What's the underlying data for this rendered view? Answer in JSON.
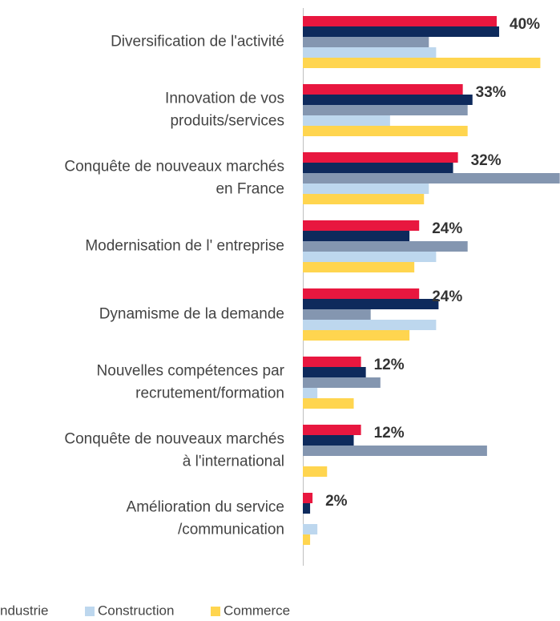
{
  "chart_data": {
    "type": "bar",
    "orientation": "horizontal",
    "categories": [
      [
        "Diversification de l'activité"
      ],
      [
        "Innovation de vos",
        "produits/services"
      ],
      [
        "Conquête de nouveaux marchés",
        "en France"
      ],
      [
        "Modernisation de l' entreprise"
      ],
      [
        "Dynamisme de la demande"
      ],
      [
        "Nouvelles compétences par",
        "recrutement/formation"
      ],
      [
        "Conquête de nouveaux marchés",
        "à l'international"
      ],
      [
        "Amélioration du service",
        "/communication"
      ]
    ],
    "series": [
      {
        "color": "#e8173f",
        "values": [
          40,
          33,
          32,
          24,
          24,
          12,
          12,
          2
        ],
        "value_labels": [
          "40%",
          "33%",
          "32%",
          "24%",
          "24%",
          "12%",
          "12%",
          "2%"
        ]
      },
      {
        "color": "#0e2a5c",
        "values": [
          40.5,
          35,
          31,
          22,
          28,
          13,
          10.5,
          1.5
        ]
      },
      {
        "name": "ndustrie",
        "color": "#8496b0",
        "values": [
          26,
          34,
          53,
          34,
          14,
          16,
          38,
          0
        ]
      },
      {
        "name": "Construction",
        "color": "#bdd7ee",
        "values": [
          27.5,
          18,
          26,
          27.5,
          27.5,
          3,
          0,
          3
        ]
      },
      {
        "name": "Commerce",
        "color": "#ffd54f",
        "values": [
          49,
          34,
          25,
          23,
          22,
          10.5,
          5,
          1.5
        ]
      }
    ]
  }
}
